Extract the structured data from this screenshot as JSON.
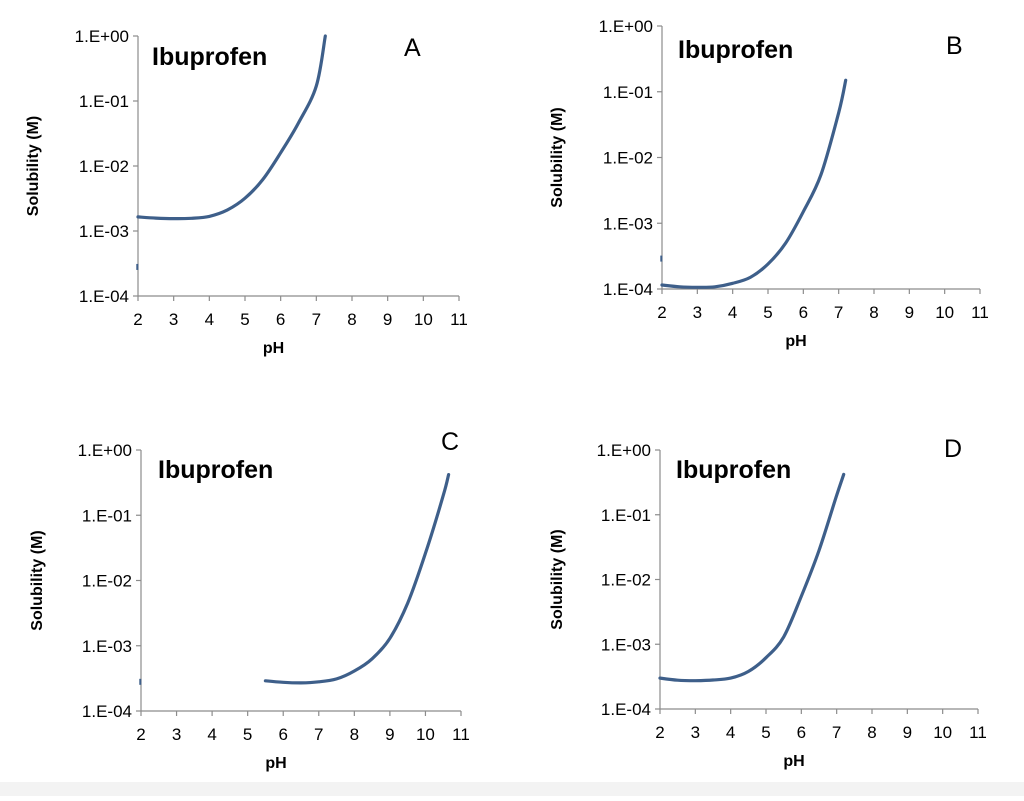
{
  "chart_data": [
    {
      "type": "line",
      "panel_label": "A",
      "title": "Ibuprofen",
      "xlabel": "pH",
      "ylabel": "Solubility (M)",
      "x_ticks": [
        "2",
        "3",
        "4",
        "5",
        "6",
        "7",
        "8",
        "9",
        "10",
        "11"
      ],
      "y_ticks": [
        "1.E-04",
        "1.E-03",
        "1.E-02",
        "1.E-01",
        "1.E+00"
      ],
      "xlim": [
        2,
        11
      ],
      "ylim": [
        0.0001,
        1
      ],
      "y_scale": "log",
      "series": [
        {
          "x": [
            2.0,
            2.5,
            3.0,
            3.5,
            4.0,
            4.5,
            5.0,
            5.5,
            6.0,
            6.5,
            7.0,
            7.25
          ],
          "y": [
            0.00165,
            0.00158,
            0.00155,
            0.00157,
            0.00168,
            0.0021,
            0.0032,
            0.0062,
            0.016,
            0.046,
            0.17,
            1.0
          ]
        }
      ],
      "marks": [
        {
          "x": 1.98,
          "y": 0.00028
        }
      ]
    },
    {
      "type": "line",
      "panel_label": "B",
      "title": "Ibuprofen",
      "xlabel": "pH",
      "ylabel": "Solubility (M)",
      "x_ticks": [
        "2",
        "3",
        "4",
        "5",
        "6",
        "7",
        "8",
        "9",
        "10",
        "11"
      ],
      "y_ticks": [
        "1.E-04",
        "1.E-03",
        "1.E-02",
        "1.E-01",
        "1.E+00"
      ],
      "xlim": [
        2,
        11
      ],
      "ylim": [
        0.0001,
        1
      ],
      "y_scale": "log",
      "series": [
        {
          "x": [
            2.0,
            2.5,
            3.0,
            3.5,
            4.0,
            4.5,
            5.0,
            5.5,
            6.0,
            6.5,
            7.0,
            7.2
          ],
          "y": [
            0.000115,
            0.000108,
            0.000106,
            0.000108,
            0.000122,
            0.00015,
            0.00024,
            0.0005,
            0.0015,
            0.0055,
            0.048,
            0.15
          ]
        }
      ],
      "marks": [
        {
          "x": 1.98,
          "y": 0.00029
        }
      ]
    },
    {
      "type": "line",
      "panel_label": "C",
      "title": "Ibuprofen",
      "xlabel": "pH",
      "ylabel": "Solubility (M)",
      "x_ticks": [
        "2",
        "3",
        "4",
        "5",
        "6",
        "7",
        "8",
        "9",
        "10",
        "11"
      ],
      "y_ticks": [
        "1.E-04",
        "1.E-03",
        "1.E-02",
        "1.E-01",
        "1.E+00"
      ],
      "xlim": [
        2,
        11
      ],
      "ylim": [
        0.0001,
        1
      ],
      "y_scale": "log",
      "series": [
        {
          "x": [
            5.5,
            6.0,
            6.5,
            7.0,
            7.5,
            8.0,
            8.5,
            9.0,
            9.5,
            10.0,
            10.5,
            10.65
          ],
          "y": [
            0.00029,
            0.000275,
            0.00027,
            0.00028,
            0.00031,
            0.00041,
            0.00063,
            0.0013,
            0.0045,
            0.026,
            0.2,
            0.42
          ]
        }
      ],
      "marks": [
        {
          "x": 1.98,
          "y": 0.00028
        }
      ]
    },
    {
      "type": "line",
      "panel_label": "D",
      "title": "Ibuprofen",
      "xlabel": "pH",
      "ylabel": "Solubility (M)",
      "x_ticks": [
        "2",
        "3",
        "4",
        "5",
        "6",
        "7",
        "8",
        "9",
        "10",
        "11"
      ],
      "y_ticks": [
        "1.E-04",
        "1.E-03",
        "1.E-02",
        "1.E-01",
        "1.E+00"
      ],
      "xlim": [
        2,
        11
      ],
      "ylim": [
        0.0001,
        1
      ],
      "y_scale": "log",
      "series": [
        {
          "x": [
            2.0,
            2.5,
            3.0,
            3.5,
            4.0,
            4.5,
            5.0,
            5.5,
            6.0,
            6.5,
            7.0,
            7.2
          ],
          "y": [
            0.0003,
            0.000278,
            0.000274,
            0.00028,
            0.0003,
            0.00038,
            0.00062,
            0.0013,
            0.0055,
            0.028,
            0.2,
            0.42
          ]
        }
      ],
      "marks": []
    }
  ],
  "colors": {
    "line": "#3e5f8a",
    "axis": "#8c8c8c",
    "text": "#000000"
  }
}
